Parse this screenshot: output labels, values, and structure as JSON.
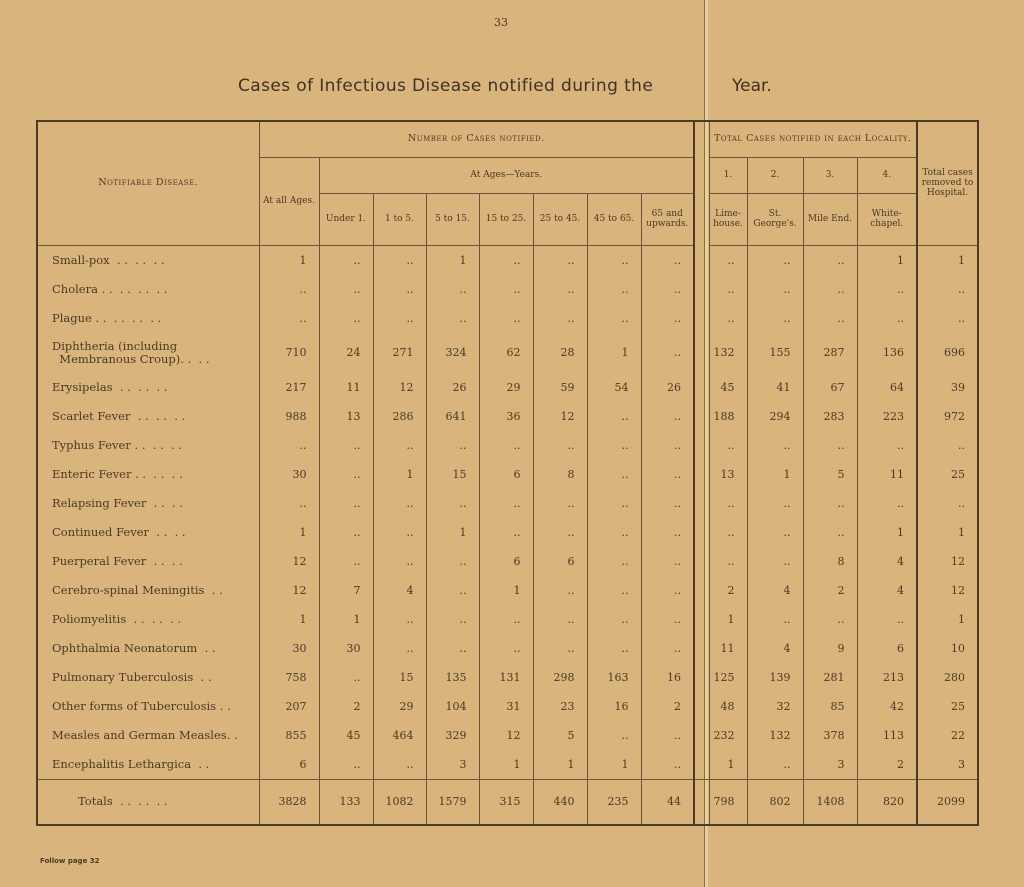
{
  "page_number": "33",
  "title_left": "Cases of Infectious Disease notified during the",
  "title_right": "Year.",
  "footnote": "Follow page 32",
  "header": {
    "disease": "Notifiable Disease.",
    "number_notified": "Number of Cases notified.",
    "at_all_ages": "At all Ages.",
    "at_ages_years": "At Ages—Years.",
    "age_groups": [
      "Under 1.",
      "1 to 5.",
      "5 to 15.",
      "15 to 25.",
      "25 to 45.",
      "45 to 65.",
      "65 and upwards."
    ],
    "locality_total": "Total Cases notified in each Locality.",
    "locality_numbers": [
      "1.",
      "2.",
      "3.",
      "4."
    ],
    "localities": [
      "Lime-house.",
      "St. George's.",
      "Mile End.",
      "White-chapel."
    ],
    "hospital": "Total cases removed to Hospital."
  },
  "rows": [
    {
      "name": "Small-pox  . .  . .  . .",
      "values": [
        "1",
        "..",
        "..",
        "1",
        "..",
        "..",
        "..",
        "..",
        "..",
        "..",
        "..",
        "1",
        "1"
      ]
    },
    {
      "name": "Cholera . .  . .  . .  . .",
      "values": [
        "..",
        "..",
        "..",
        "..",
        "..",
        "..",
        "..",
        "..",
        "..",
        "..",
        "..",
        "..",
        ".."
      ]
    },
    {
      "name": "Plague . .  . .  . .  . .",
      "values": [
        "..",
        "..",
        "..",
        "..",
        "..",
        "..",
        "..",
        "..",
        "..",
        "..",
        "..",
        "..",
        ".."
      ]
    },
    {
      "name": "Diphtheria (including\n  Membranous Croup). .  . .",
      "values": [
        "710",
        "24",
        "271",
        "324",
        "62",
        "28",
        "1",
        "..",
        "132",
        "155",
        "287",
        "136",
        "696"
      ]
    },
    {
      "name": "Erysipelas  . .  . .  . .",
      "values": [
        "217",
        "11",
        "12",
        "26",
        "29",
        "59",
        "54",
        "26",
        "45",
        "41",
        "67",
        "64",
        "39"
      ]
    },
    {
      "name": "Scarlet Fever  . .  . .  . .",
      "values": [
        "988",
        "13",
        "286",
        "641",
        "36",
        "12",
        "..",
        "..",
        "188",
        "294",
        "283",
        "223",
        "972"
      ]
    },
    {
      "name": "Typhus Fever . .  . .  . .",
      "values": [
        "..",
        "..",
        "..",
        "..",
        "..",
        "..",
        "..",
        "..",
        "..",
        "..",
        "..",
        "..",
        ".."
      ]
    },
    {
      "name": "Enteric Fever . .  . .  . .",
      "values": [
        "30",
        "..",
        "1",
        "15",
        "6",
        "8",
        "..",
        "..",
        "13",
        "1",
        "5",
        "11",
        "25"
      ]
    },
    {
      "name": "Relapsing Fever  . .  . .",
      "values": [
        "..",
        "..",
        "..",
        "..",
        "..",
        "..",
        "..",
        "..",
        "..",
        "..",
        "..",
        "..",
        ".."
      ]
    },
    {
      "name": "Continued Fever  . .  . .",
      "values": [
        "1",
        "..",
        "..",
        "1",
        "..",
        "..",
        "..",
        "..",
        "..",
        "..",
        "..",
        "1",
        "1"
      ]
    },
    {
      "name": "Puerperal Fever  . .  . .",
      "values": [
        "12",
        "..",
        "..",
        "..",
        "6",
        "6",
        "..",
        "..",
        "..",
        "..",
        "8",
        "4",
        "12"
      ]
    },
    {
      "name": "Cerebro-spinal Meningitis  . .",
      "values": [
        "12",
        "7",
        "4",
        "..",
        "1",
        "..",
        "..",
        "..",
        "2",
        "4",
        "2",
        "4",
        "12"
      ]
    },
    {
      "name": "Poliomyelitis  . .  . .  . .",
      "values": [
        "1",
        "1",
        "..",
        "..",
        "..",
        "..",
        "..",
        "..",
        "1",
        "..",
        "..",
        "..",
        "1"
      ]
    },
    {
      "name": "Ophthalmia Neonatorum  . .",
      "values": [
        "30",
        "30",
        "..",
        "..",
        "..",
        "..",
        "..",
        "..",
        "11",
        "4",
        "9",
        "6",
        "10"
      ]
    },
    {
      "name": "Pulmonary Tuberculosis  . .",
      "values": [
        "758",
        "..",
        "15",
        "135",
        "131",
        "298",
        "163",
        "16",
        "125",
        "139",
        "281",
        "213",
        "280"
      ]
    },
    {
      "name": "Other forms of Tuberculosis . .",
      "values": [
        "207",
        "2",
        "29",
        "104",
        "31",
        "23",
        "16",
        "2",
        "48",
        "32",
        "85",
        "42",
        "25"
      ]
    },
    {
      "name": "Measles and German Measles. .",
      "values": [
        "855",
        "45",
        "464",
        "329",
        "12",
        "5",
        "..",
        "..",
        "232",
        "132",
        "378",
        "113",
        "22"
      ]
    },
    {
      "name": "Encephalitis Lethargica  . .",
      "values": [
        "6",
        "..",
        "..",
        "3",
        "1",
        "1",
        "1",
        "..",
        "1",
        "..",
        "3",
        "2",
        "3"
      ]
    }
  ],
  "totals": {
    "name": "Totals  . .  . .  . .",
    "values": [
      "3828",
      "133",
      "1082",
      "1579",
      "315",
      "440",
      "235",
      "44",
      "798",
      "802",
      "1408",
      "820",
      "2099"
    ]
  }
}
